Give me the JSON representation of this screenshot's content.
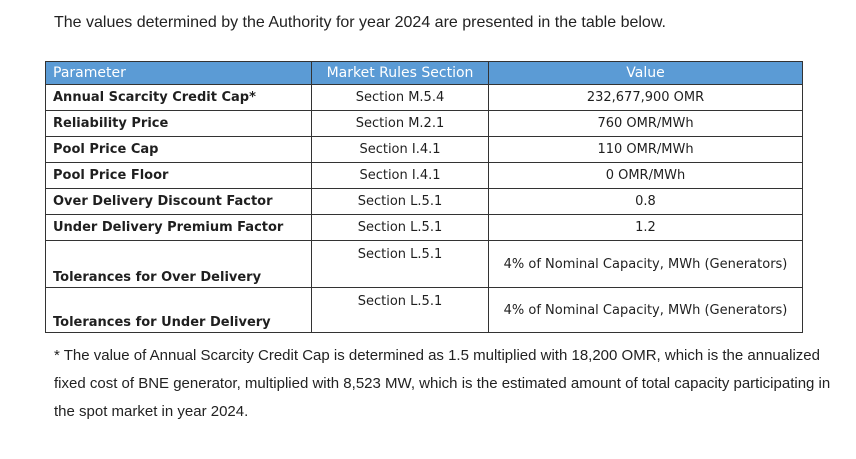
{
  "intro": "The values determined by the Authority for year 2024 are presented in the table below.",
  "table": {
    "headers": [
      "Parameter",
      "Market Rules Section",
      "Value"
    ],
    "rows": [
      [
        "Annual Scarcity Credit Cap*",
        "Section M.5.4",
        "232,677,900 OMR"
      ],
      [
        "Reliability Price",
        "Section M.2.1",
        "760 OMR/MWh"
      ],
      [
        "Pool Price Cap",
        "Section I.4.1",
        "110 OMR/MWh"
      ],
      [
        "Pool Price Floor",
        "Section I.4.1",
        "0 OMR/MWh"
      ],
      [
        "Over Delivery Discount Factor",
        "Section L.5.1",
        "0.8"
      ],
      [
        "Under Delivery Premium Factor",
        "Section L.5.1",
        "1.2"
      ],
      [
        "Tolerances for Over Delivery",
        "Section L.5.1",
        "4% of Nominal Capacity, MWh (Generators)"
      ],
      [
        "Tolerances for Under Delivery",
        "Section L.5.1",
        "4% of Nominal Capacity, MWh (Generators)"
      ]
    ]
  },
  "footnote": "* The value of Annual Scarcity Credit Cap is determined as 1.5 multiplied with 18,200 OMR, which is the annualized fixed cost of BNE generator, multiplied with 8,523 MW, which is the estimated amount of total capacity participating in the spot market in year 2024."
}
